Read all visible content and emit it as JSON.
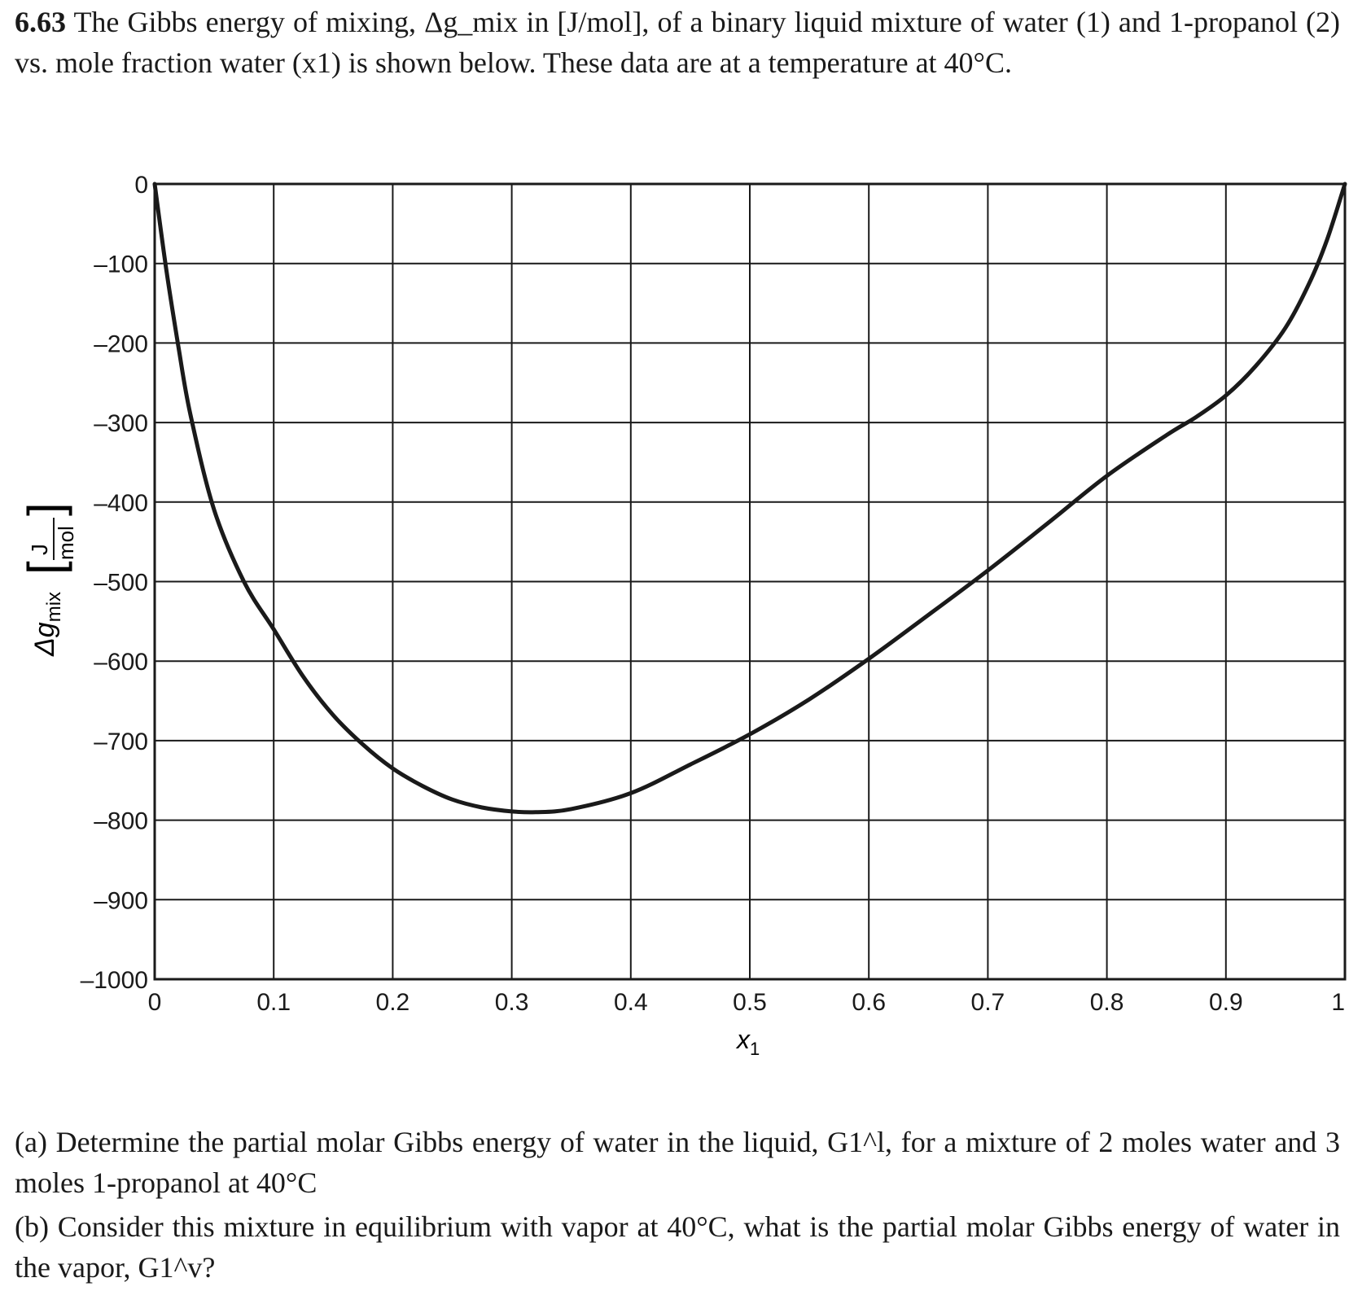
{
  "problem": {
    "number": "6.63",
    "text": "The Gibbs energy of mixing, Δg_mix in [J/mol], of a binary liquid mixture of water (1) and 1-propanol (2) vs. mole fraction water (x1) is shown below. These data are at a temperature at 40°C."
  },
  "chart_data": {
    "type": "line",
    "xlabel": "x1",
    "ylabel": "Δg_mix [J/mol]",
    "xlim": [
      0,
      1
    ],
    "ylim": [
      -1000,
      0
    ],
    "grid": true,
    "x_ticks": [
      "0",
      "0.1",
      "0.2",
      "0.3",
      "0.4",
      "0.5",
      "0.6",
      "0.7",
      "0.8",
      "0.9",
      "1"
    ],
    "y_ticks": [
      "0",
      "–100",
      "–200",
      "–300",
      "–400",
      "–500",
      "–600",
      "–700",
      "–800",
      "–900",
      "–1000"
    ],
    "series": [
      {
        "x": [
          0,
          0.01,
          0.02,
          0.03,
          0.05,
          0.075,
          0.1,
          0.125,
          0.15,
          0.175,
          0.2,
          0.225,
          0.25,
          0.275,
          0.3,
          0.32,
          0.35,
          0.4,
          0.45,
          0.5,
          0.55,
          0.6,
          0.65,
          0.7,
          0.75,
          0.8,
          0.85,
          0.875,
          0.9,
          0.925,
          0.95,
          0.97,
          0.985,
          1
        ],
        "y": [
          0,
          -110,
          -205,
          -290,
          -410,
          -500,
          -560,
          -620,
          -668,
          -705,
          -735,
          -757,
          -774,
          -784,
          -789,
          -790,
          -786,
          -766,
          -730,
          -692,
          -648,
          -597,
          -542,
          -486,
          -427,
          -367,
          -316,
          -293,
          -266,
          -229,
          -181,
          -125,
          -70,
          0
        ]
      }
    ]
  },
  "labels": {
    "x_axis_main": "x",
    "x_axis_sub": "1",
    "y_axis_main": "Δg",
    "y_axis_sub": "mix",
    "y_unit_num": "J",
    "y_unit_den": "mol"
  },
  "questions": {
    "a": "(a) Determine the partial molar Gibbs energy of water in the liquid, G1^l, for a mixture of 2 moles water and 3 moles 1-propanol at 40°C",
    "b": "(b) Consider this mixture in equilibrium with vapor at 40°C, what is the partial molar Gibbs energy of water in the vapor, G1^v?"
  }
}
